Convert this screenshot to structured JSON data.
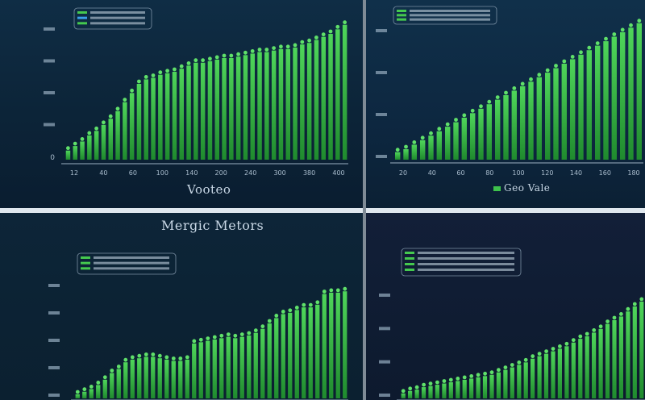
{
  "chart_data": [
    {
      "type": "bar",
      "title": "",
      "xlabel": "Vooteo",
      "ylabel": "",
      "legend": [],
      "y_tick_labels": [
        "",
        "",
        "",
        "",
        "0"
      ],
      "x_tick_labels": [
        "12",
        "40",
        "60",
        "100",
        "140",
        "200",
        "240",
        "300",
        "380",
        "400"
      ],
      "ylim": [
        0,
        100
      ],
      "values": [
        6,
        9,
        12,
        16,
        19,
        23,
        27,
        32,
        38,
        44,
        50,
        53,
        54,
        56,
        57,
        58,
        60,
        62,
        64,
        64,
        65,
        66,
        67,
        67,
        68,
        69,
        70,
        71,
        71,
        72,
        73,
        73,
        74,
        76,
        77,
        79,
        81,
        83,
        86,
        89
      ]
    },
    {
      "type": "bar",
      "title": "",
      "xlabel": "",
      "ylabel": "",
      "legend": [
        "Geo Vale"
      ],
      "y_tick_labels": [
        "",
        "",
        "",
        ""
      ],
      "x_tick_labels": [
        "20",
        "40",
        "60",
        "80",
        "100",
        "120",
        "140",
        "160",
        "180"
      ],
      "ylim": [
        0,
        100
      ],
      "values": [
        5,
        7,
        10,
        13,
        16,
        19,
        22,
        25,
        28,
        31,
        34,
        37,
        40,
        43,
        46,
        49,
        52,
        55,
        58,
        61,
        64,
        67,
        70,
        73,
        76,
        79,
        82,
        85,
        88,
        91
      ]
    },
    {
      "type": "bar",
      "title": "Mergic Metors",
      "xlabel": "",
      "ylabel": "",
      "legend": [],
      "y_tick_labels": [
        "",
        "",
        "",
        "",
        ""
      ],
      "x_tick_labels": [],
      "ylim": [
        0,
        100
      ],
      "values": [
        3,
        5,
        7,
        10,
        14,
        19,
        22,
        27,
        29,
        30,
        31,
        31,
        30,
        29,
        28,
        28,
        29,
        41,
        42,
        43,
        44,
        45,
        46,
        45,
        46,
        47,
        49,
        52,
        56,
        60,
        63,
        64,
        66,
        68,
        68,
        70,
        78,
        79,
        79,
        80
      ]
    },
    {
      "type": "bar",
      "title": "",
      "xlabel": "",
      "ylabel": "",
      "legend": [],
      "y_tick_labels": [
        "",
        "",
        "",
        ""
      ],
      "x_tick_labels": [],
      "ylim": [
        0,
        100
      ],
      "values": [
        4,
        6,
        7,
        9,
        10,
        11,
        12,
        13,
        14,
        15,
        16,
        17,
        18,
        19,
        21,
        23,
        25,
        27,
        29,
        32,
        34,
        36,
        38,
        40,
        42,
        45,
        48,
        50,
        53,
        56,
        60,
        63,
        66,
        70,
        74,
        78
      ]
    }
  ]
}
